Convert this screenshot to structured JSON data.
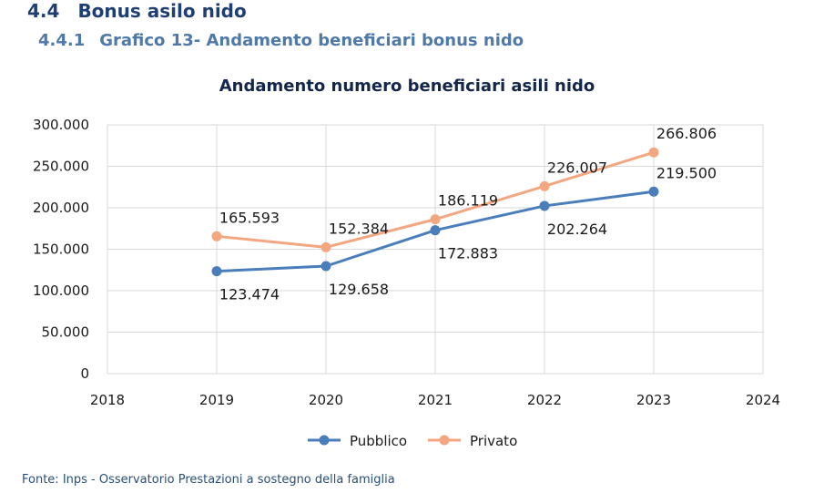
{
  "section": {
    "number": "4.4",
    "title": "Bonus asilo nido"
  },
  "subsection": {
    "number": "4.4.1",
    "title": "Grafico 13- Andamento beneficiari bonus nido"
  },
  "source": "Fonte: Inps - Osservatorio Prestazioni a sostegno della famiglia",
  "colors": {
    "pubblico": "#4a7ebb",
    "privato": "#f2a781",
    "grid": "#d9d9d9",
    "heading": "#1f3f73",
    "subheading": "#4f79a8"
  },
  "chart_data": {
    "type": "line",
    "title": "Andamento numero beneficiari asili nido",
    "xlabel": "",
    "ylabel": "",
    "xlim": [
      2018,
      2024
    ],
    "ylim": [
      0,
      300000
    ],
    "x_ticks": [
      "2018",
      "2019",
      "2020",
      "2021",
      "2022",
      "2023",
      "2024"
    ],
    "y_ticks": [
      "0",
      "50.000",
      "100.000",
      "150.000",
      "200.000",
      "250.000",
      "300.000"
    ],
    "grid": true,
    "legend_position": "bottom",
    "series": [
      {
        "name": "Pubblico",
        "color": "#4a7ebb",
        "x": [
          2019,
          2020,
          2021,
          2022,
          2023
        ],
        "values": [
          123474,
          129658,
          172883,
          202264,
          219500
        ],
        "labels": [
          "123.474",
          "129.658",
          "172.883",
          "202.264",
          "219.500"
        ]
      },
      {
        "name": "Privato",
        "color": "#f2a781",
        "x": [
          2019,
          2020,
          2021,
          2022,
          2023
        ],
        "values": [
          165593,
          152384,
          186119,
          226007,
          266806
        ],
        "labels": [
          "165.593",
          "152.384",
          "186.119",
          "226.007",
          "266.806"
        ]
      }
    ]
  }
}
